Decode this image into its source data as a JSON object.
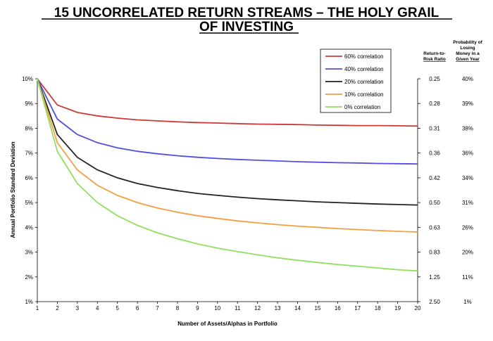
{
  "title": {
    "line1": "15 UNCORRELATED RETURN STREAMS – THE HOLY GRAIL",
    "line2": "OF INVESTING"
  },
  "chart_data": {
    "type": "line",
    "xlabel": "Number of Assets/Alphas in Portfolio",
    "ylabel": "Annual Portfolio Standard Deviation",
    "x": [
      1,
      2,
      3,
      4,
      5,
      6,
      7,
      8,
      9,
      10,
      11,
      12,
      13,
      14,
      15,
      16,
      17,
      18,
      19,
      20
    ],
    "x_ticks": [
      "1",
      "2",
      "3",
      "4",
      "5",
      "6",
      "7",
      "8",
      "9",
      "10",
      "11",
      "12",
      "13",
      "14",
      "15",
      "16",
      "17",
      "18",
      "19",
      "20"
    ],
    "xlim": [
      1,
      20
    ],
    "ylim": [
      1,
      10
    ],
    "y_ticks": [
      "1%",
      "2%",
      "3%",
      "4%",
      "5%",
      "6%",
      "7%",
      "8%",
      "9%",
      "10%"
    ],
    "grid": false,
    "legend_position": "top-right",
    "series": [
      {
        "name": "60% correlation",
        "color": "#cc3a36",
        "values": [
          10.0,
          8.94,
          8.64,
          8.5,
          8.41,
          8.34,
          8.3,
          8.26,
          8.23,
          8.21,
          8.19,
          8.17,
          8.16,
          8.15,
          8.13,
          8.12,
          8.11,
          8.11,
          8.1,
          8.09
        ]
      },
      {
        "name": "40% correlation",
        "color": "#5050e0",
        "values": [
          10.0,
          8.37,
          7.75,
          7.42,
          7.21,
          7.07,
          6.97,
          6.89,
          6.83,
          6.78,
          6.74,
          6.71,
          6.68,
          6.65,
          6.63,
          6.61,
          6.6,
          6.58,
          6.57,
          6.56
        ]
      },
      {
        "name": "20% correlation",
        "color": "#222222",
        "values": [
          10.0,
          7.75,
          6.83,
          6.32,
          6.0,
          5.77,
          5.61,
          5.48,
          5.37,
          5.29,
          5.22,
          5.16,
          5.11,
          5.07,
          5.03,
          5.0,
          4.97,
          4.94,
          4.92,
          4.9
        ]
      },
      {
        "name": "10% correlation",
        "color": "#f0a040",
        "values": [
          10.0,
          7.42,
          6.32,
          5.7,
          5.29,
          5.0,
          4.78,
          4.61,
          4.47,
          4.36,
          4.26,
          4.18,
          4.11,
          4.05,
          4.0,
          3.95,
          3.91,
          3.87,
          3.84,
          3.81
        ]
      },
      {
        "name": "0% correlation",
        "color": "#90e060",
        "values": [
          10.0,
          7.07,
          5.77,
          5.0,
          4.47,
          4.08,
          3.78,
          3.54,
          3.33,
          3.16,
          3.02,
          2.89,
          2.77,
          2.67,
          2.58,
          2.5,
          2.43,
          2.36,
          2.29,
          2.24
        ]
      }
    ],
    "right_table": {
      "header_ratio": "Return-to-Risk Ratio",
      "header_prob": "Probability of Losing Money in a Given Year",
      "rows": [
        {
          "y": 10,
          "ratio": "0.25",
          "prob": "40%"
        },
        {
          "y": 9,
          "ratio": "0.28",
          "prob": "39%"
        },
        {
          "y": 8,
          "ratio": "0.31",
          "prob": "38%"
        },
        {
          "y": 7,
          "ratio": "0.36",
          "prob": "36%"
        },
        {
          "y": 6,
          "ratio": "0.42",
          "prob": "34%"
        },
        {
          "y": 5,
          "ratio": "0.50",
          "prob": "31%"
        },
        {
          "y": 4,
          "ratio": "0.63",
          "prob": "26%"
        },
        {
          "y": 3,
          "ratio": "0.83",
          "prob": "20%"
        },
        {
          "y": 2,
          "ratio": "1.25",
          "prob": "11%"
        },
        {
          "y": 1,
          "ratio": "2.50",
          "prob": "1%"
        }
      ]
    }
  }
}
